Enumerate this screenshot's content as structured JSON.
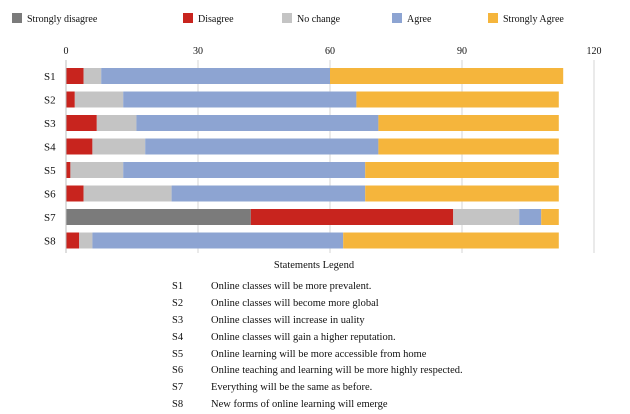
{
  "chart_data": {
    "type": "bar",
    "orientation": "horizontal",
    "stacked": true,
    "legend_position": "top",
    "grid": true,
    "xlim": [
      0,
      120
    ],
    "xticks": [
      0,
      30,
      60,
      90,
      120
    ],
    "categories": [
      "S1",
      "S2",
      "S3",
      "S4",
      "S5",
      "S6",
      "S7",
      "S8"
    ],
    "series": [
      {
        "name": "Strongly disagree",
        "color": "#7b7b7b",
        "values": [
          0,
          0,
          0,
          0,
          0,
          0,
          42,
          0
        ]
      },
      {
        "name": "Disagree",
        "color": "#c8241e",
        "values": [
          4,
          2,
          7,
          6,
          1,
          4,
          46,
          3
        ]
      },
      {
        "name": "No change",
        "color": "#c4c4c4",
        "values": [
          4,
          11,
          9,
          12,
          12,
          20,
          15,
          3
        ]
      },
      {
        "name": "Agree",
        "color": "#8da4d2",
        "values": [
          52,
          53,
          55,
          53,
          55,
          44,
          5,
          57
        ]
      },
      {
        "name": "Strongly Agree",
        "color": "#f5b53c",
        "values": [
          53,
          46,
          41,
          41,
          44,
          44,
          4,
          49
        ]
      }
    ]
  },
  "statements": {
    "title": "Statements Legend",
    "items": [
      {
        "code": "S1",
        "text": "Online classes will be more prevalent."
      },
      {
        "code": "S2",
        "text": "Online classes will become more global"
      },
      {
        "code": "S3",
        "text": "Online classes will increase in uality"
      },
      {
        "code": "S4",
        "text": "Online classes will gain a higher reputation."
      },
      {
        "code": "S5",
        "text": "Online learning will be more accessible from home"
      },
      {
        "code": "S6",
        "text": "Online teaching and learning will be more highly respected."
      },
      {
        "code": "S7",
        "text": "Everything will be the same as before."
      },
      {
        "code": "S8",
        "text": "New forms of online learning will emerge"
      }
    ]
  }
}
